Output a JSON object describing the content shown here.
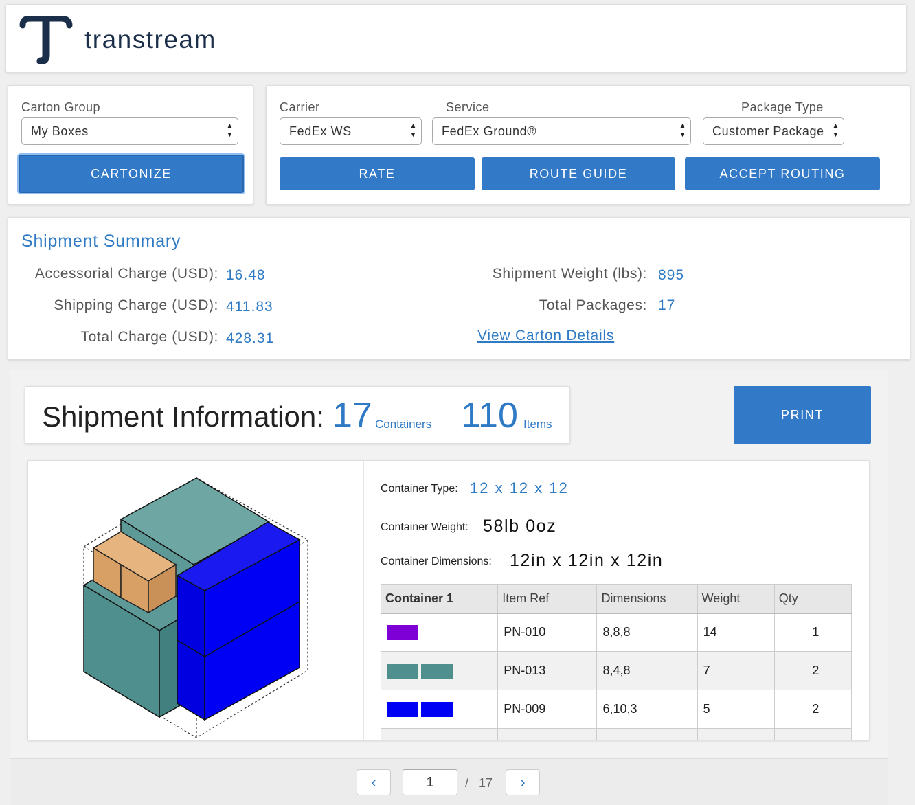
{
  "brand": {
    "name": "transtream"
  },
  "carton": {
    "label": "Carton Group",
    "value": "My Boxes",
    "button": "CARTONIZE"
  },
  "carrier": {
    "label": "Carrier",
    "value": "FedEx WS"
  },
  "service": {
    "label": "Service",
    "value": "FedEx Ground®"
  },
  "package_type": {
    "label": "Package Type",
    "value": "Customer Package"
  },
  "actions": {
    "rate": "RATE",
    "route_guide": "ROUTE GUIDE",
    "accept_routing": "ACCEPT ROUTING"
  },
  "summary": {
    "title": "Shipment Summary",
    "accessorial_label": "Accessorial Charge (USD):",
    "accessorial_value": "16.48",
    "shipping_label": "Shipping Charge (USD):",
    "shipping_value": "411.83",
    "total_label": "Total Charge (USD):",
    "total_value": "428.31",
    "weight_label": "Shipment Weight (lbs):",
    "weight_value": "895",
    "packages_label": "Total Packages:",
    "packages_value": "17",
    "details_link": "View Carton Details"
  },
  "shipment_info": {
    "title": "Shipment Information:",
    "containers_count": "17",
    "containers_label": "Containers",
    "items_count": "110",
    "items_label": "Items",
    "print": "PRINT"
  },
  "container": {
    "type_label": "Container Type:",
    "type_value": "12 x 12 x 12",
    "weight_label": "Container Weight:",
    "weight_value": "58lb 0oz",
    "dims_label": "Container Dimensions:",
    "dims_value": "12in x 12in x 12in"
  },
  "item_table": {
    "headers": [
      "Container 1",
      "Item Ref",
      "Dimensions",
      "Weight",
      "Qty"
    ],
    "rows": [
      {
        "colors": [
          "#7f00d6"
        ],
        "ref": "PN-010",
        "dims": "8,8,8",
        "weight": "14",
        "qty": "1"
      },
      {
        "colors": [
          "#4f8f8e",
          "#4f8f8e"
        ],
        "ref": "PN-013",
        "dims": "8,4,8",
        "weight": "7",
        "qty": "2"
      },
      {
        "colors": [
          "#0000f5",
          "#0000f5"
        ],
        "ref": "PN-009",
        "dims": "6,10,3",
        "weight": "5",
        "qty": "2"
      }
    ]
  },
  "pager": {
    "current": "1",
    "separator": "/",
    "total": "17"
  },
  "colors": {
    "accent": "#3279c7",
    "teal": "#4f8f8e",
    "blue": "#0000f5",
    "orange": "#e0a468",
    "purple": "#7f00d6"
  }
}
